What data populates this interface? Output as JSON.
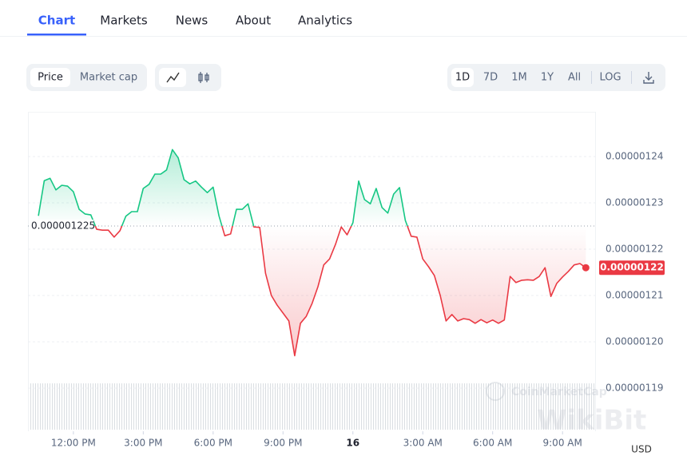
{
  "tabs": [
    "Chart",
    "Markets",
    "News",
    "About",
    "Analytics"
  ],
  "active_tab": "Chart",
  "metric_buttons": [
    "Price",
    "Market cap"
  ],
  "range_buttons": [
    "1D",
    "7D",
    "1M",
    "1Y",
    "All"
  ],
  "log_button": "LOG",
  "watermarks": [
    "CoinMarketCap",
    "WikiBit"
  ],
  "chart_data": {
    "type": "line",
    "x": [
      10.5,
      10.75,
      11,
      11.25,
      11.5,
      11.75,
      12,
      12.25,
      12.5,
      12.75,
      13,
      13.25,
      13.5,
      13.75,
      14,
      14.25,
      14.5,
      14.75,
      15,
      15.25,
      15.5,
      15.75,
      16,
      16.25,
      16.5,
      16.75,
      17,
      17.25,
      17.5,
      17.75,
      18,
      18.25,
      18.5,
      18.75,
      19,
      19.25,
      19.5,
      19.75,
      20,
      20.25,
      20.5,
      20.75,
      21,
      21.25,
      21.5,
      21.75,
      22,
      22.25,
      22.5,
      22.75,
      23,
      23.25,
      23.5,
      23.75,
      24,
      24.25,
      24.5,
      24.75,
      25,
      25.25,
      25.5,
      25.75,
      26,
      26.25,
      26.5,
      26.75,
      27,
      27.25,
      27.5,
      27.75,
      28,
      28.25,
      28.5,
      28.75,
      29,
      29.25,
      29.5,
      29.75,
      30,
      30.25,
      30.5,
      30.75,
      31,
      31.25,
      31.5,
      31.75,
      32,
      32.25,
      32.5,
      32.75,
      33,
      33.25,
      33.5,
      33.75,
      34
    ],
    "values": [
      1.2272e-06,
      1.2348e-06,
      1.2353e-06,
      1.2328e-06,
      1.2338e-06,
      1.2336e-06,
      1.2324e-06,
      1.2286e-06,
      1.2276e-06,
      1.2274e-06,
      1.2243e-06,
      1.2241e-06,
      1.2241e-06,
      1.2226e-06,
      1.224e-06,
      1.2271e-06,
      1.2281e-06,
      1.2281e-06,
      1.2331e-06,
      1.234e-06,
      1.2362e-06,
      1.2362e-06,
      1.2371e-06,
      1.2415e-06,
      1.2397e-06,
      1.235e-06,
      1.2341e-06,
      1.2347e-06,
      1.2334e-06,
      1.2322e-06,
      1.2334e-06,
      1.2272e-06,
      1.2229e-06,
      1.2233e-06,
      1.2286e-06,
      1.2286e-06,
      1.2298e-06,
      1.2248e-06,
      1.2247e-06,
      1.2148e-06,
      1.21e-06,
      1.2079e-06,
      1.2062e-06,
      1.2045e-06,
      1.197e-06,
      1.204e-06,
      1.2055e-06,
      1.2083e-06,
      1.2119e-06,
      1.2166e-06,
      1.2179e-06,
      1.221e-06,
      1.2248e-06,
      1.2231e-06,
      1.2257e-06,
      1.2347e-06,
      1.2307e-06,
      1.2298e-06,
      1.2331e-06,
      1.229e-06,
      1.2278e-06,
      1.2319e-06,
      1.2333e-06,
      1.2262e-06,
      1.2228e-06,
      1.2226e-06,
      1.2179e-06,
      1.2162e-06,
      1.2143e-06,
      1.21e-06,
      1.2045e-06,
      1.2059e-06,
      1.2045e-06,
      1.205e-06,
      1.2048e-06,
      1.204e-06,
      1.2048e-06,
      1.2041e-06,
      1.2047e-06,
      1.204e-06,
      1.2047e-06,
      1.2141e-06,
      1.2128e-06,
      1.2133e-06,
      1.2134e-06,
      1.2133e-06,
      1.2141e-06,
      1.216e-06,
      1.2098e-06,
      1.2126e-06,
      1.214e-06,
      1.2152e-06,
      1.2166e-06,
      1.2169e-06,
      1.216e-06
    ],
    "xlim": [
      10.05,
      34.4
    ],
    "ylim": [
      1.18e-06,
      1.25e-06
    ],
    "xticks": [
      {
        "value": 12,
        "label": "12:00 PM"
      },
      {
        "value": 15,
        "label": "3:00 PM"
      },
      {
        "value": 18,
        "label": "6:00 PM"
      },
      {
        "value": 21,
        "label": "9:00 PM"
      },
      {
        "value": 24,
        "label": "16"
      },
      {
        "value": 27,
        "label": "3:00 AM"
      },
      {
        "value": 30,
        "label": "6:00 AM"
      },
      {
        "value": 33,
        "label": "9:00 AM"
      }
    ],
    "yticks": [
      1.24e-06,
      1.23e-06,
      1.22e-06,
      1.21e-06,
      {
        "value": 1.2e-06,
        "label": "0.00000120"
      },
      1.19e-06
    ],
    "baseline": 1.225e-06,
    "price_tag": {
      "value": 1.216e-06,
      "label": "0.00000122"
    },
    "y_unit": "USD",
    "up_color": "#16c784",
    "down_color": "#ea3943",
    "grid": true
  }
}
